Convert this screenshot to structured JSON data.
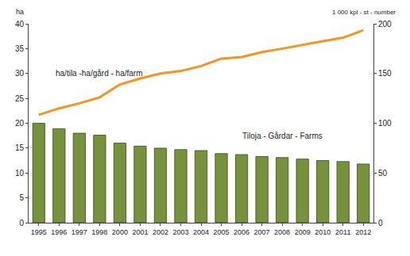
{
  "chart_data": {
    "type": "bar",
    "y_label": "ha",
    "y2_label": "1 000 kpl - st - number",
    "categories": [
      "1995",
      "1996",
      "1997",
      "1998",
      "2000",
      "2001",
      "2002",
      "2003",
      "2004",
      "2005",
      "2006",
      "2007",
      "2008",
      "2009",
      "2010",
      "2011",
      "2012"
    ],
    "series": [
      {
        "name": "ha/tila -ha/gård - ha/farm",
        "type": "line",
        "axis": "y",
        "color": "#f7941d",
        "values": [
          21.7,
          23.0,
          24.0,
          25.2,
          27.8,
          29.0,
          30.0,
          30.5,
          31.5,
          33.0,
          33.3,
          34.3,
          35.0,
          35.8,
          36.5,
          37.2,
          38.7
        ]
      },
      {
        "name": "Tiloja - Gårdar - Farms",
        "type": "bar",
        "axis": "y2",
        "color": "#76923c",
        "values": [
          100,
          94.5,
          90,
          88,
          80,
          77,
          75,
          73.5,
          72.5,
          69.5,
          68.5,
          66.5,
          65.5,
          64,
          62.5,
          61.5,
          59
        ]
      }
    ],
    "ylim": [
      0,
      40
    ],
    "yticks": [
      0,
      5,
      10,
      15,
      20,
      25,
      30,
      35,
      40
    ],
    "y2lim": [
      0,
      200
    ],
    "y2ticks": [
      0,
      50,
      100,
      150,
      200
    ],
    "grid": false
  }
}
